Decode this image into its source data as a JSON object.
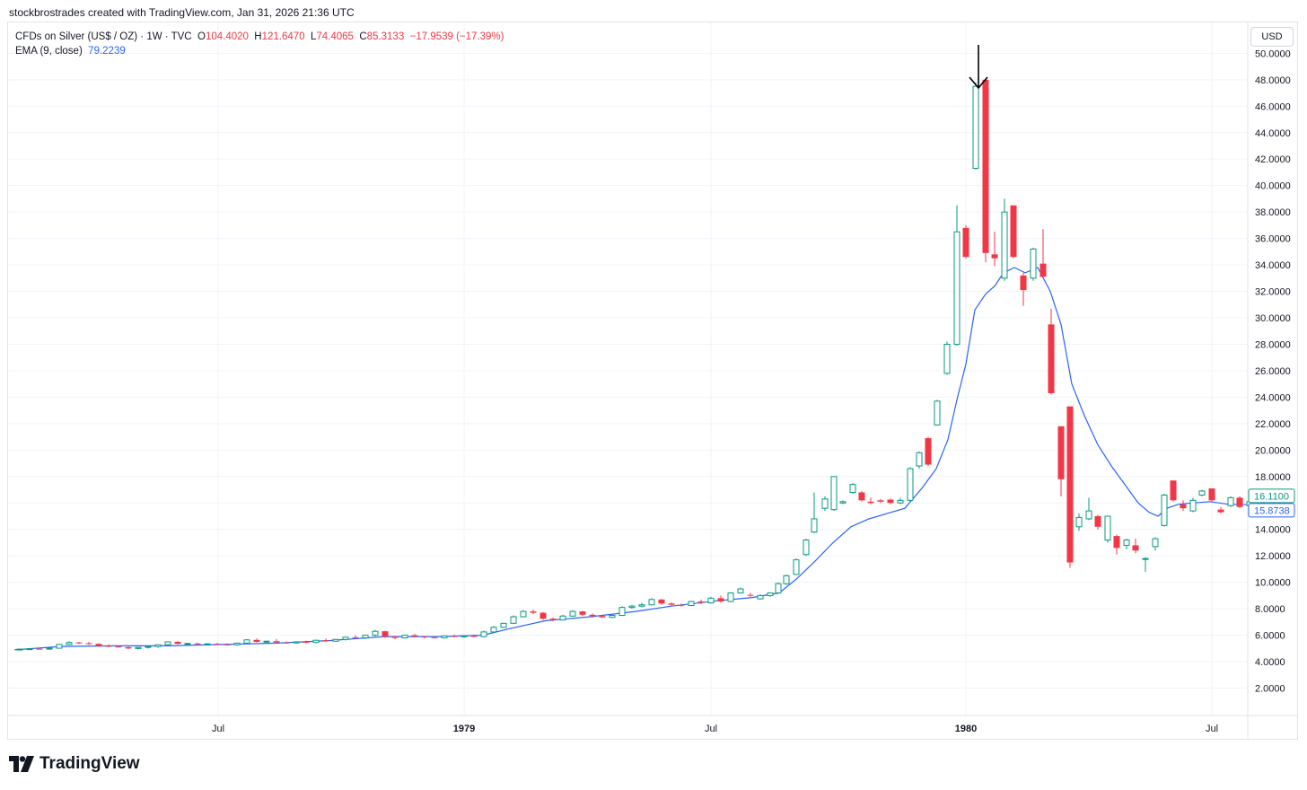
{
  "header": {
    "attribution": "stockbrostrades created with TradingView.com, Jan 31, 2026 21:36 UTC"
  },
  "legend": {
    "symbol": "CFDs on Silver (US$ / OZ) · 1W · TVC",
    "o_label": "O",
    "o_value": "104.4020",
    "h_label": "H",
    "h_value": "121.6470",
    "l_label": "L",
    "l_value": "74.4065",
    "c_label": "C",
    "c_value": "85.3133",
    "change": "−17.9539 (−17.39%)",
    "ema_label": "EMA (9, close)",
    "ema_value": "79.2239"
  },
  "currency": "USD",
  "footer": {
    "logo_text": "TradingView"
  },
  "colors": {
    "up": "#089981",
    "down": "#f23645",
    "ema": "#2962ff",
    "grid": "#f0f3fa"
  },
  "chart_data": {
    "type": "candlestick",
    "y_axis": {
      "ticks": [
        "2.0000",
        "4.0000",
        "6.0000",
        "8.0000",
        "10.0000",
        "12.0000",
        "14.0000",
        "16.0000",
        "18.0000",
        "20.0000",
        "22.0000",
        "24.0000",
        "26.0000",
        "28.0000",
        "30.0000",
        "32.0000",
        "34.0000",
        "36.0000",
        "38.0000",
        "40.0000",
        "42.0000",
        "44.0000",
        "46.0000",
        "48.0000",
        "50.0000"
      ],
      "range": [
        0,
        52.4
      ]
    },
    "x_axis": {
      "ticks": [
        {
          "label": "Jul",
          "x": 235
        },
        {
          "label": "1979",
          "x": 509
        },
        {
          "label": "Jul",
          "x": 784
        },
        {
          "label": "1980",
          "x": 1068
        },
        {
          "label": "Jul",
          "x": 1342
        }
      ],
      "range": [
        0,
        1386
      ]
    },
    "last_price_label": "16.1100",
    "ema_last_label": "15.8738",
    "annotation": "arrow pointing at the peak candle (~48.00)",
    "candles": [
      [
        14,
        4.92,
        4.96,
        4.88,
        4.95
      ],
      [
        25,
        4.95,
        5.0,
        4.9,
        4.98
      ],
      [
        36,
        4.98,
        5.05,
        4.92,
        4.95
      ],
      [
        47,
        4.95,
        5.05,
        4.9,
        5.02
      ],
      [
        58,
        5.02,
        5.35,
        5.0,
        5.3
      ],
      [
        69,
        5.3,
        5.55,
        5.25,
        5.45
      ],
      [
        80,
        5.45,
        5.5,
        5.35,
        5.4
      ],
      [
        91,
        5.4,
        5.48,
        5.28,
        5.35
      ],
      [
        102,
        5.35,
        5.4,
        5.15,
        5.2
      ],
      [
        113,
        5.2,
        5.3,
        5.1,
        5.15
      ],
      [
        124,
        5.15,
        5.22,
        5.05,
        5.1
      ],
      [
        135,
        5.1,
        5.15,
        4.95,
        5.0
      ],
      [
        146,
        5.0,
        5.12,
        4.92,
        5.08
      ],
      [
        157,
        5.08,
        5.2,
        5.0,
        5.15
      ],
      [
        168,
        5.15,
        5.32,
        5.05,
        5.28
      ],
      [
        179,
        5.28,
        5.55,
        5.2,
        5.5
      ],
      [
        190,
        5.5,
        5.55,
        5.3,
        5.35
      ],
      [
        201,
        5.35,
        5.42,
        5.25,
        5.38
      ],
      [
        212,
        5.38,
        5.45,
        5.3,
        5.32
      ],
      [
        223,
        5.32,
        5.4,
        5.25,
        5.35
      ],
      [
        234,
        5.35,
        5.42,
        5.28,
        5.3
      ],
      [
        245,
        5.3,
        5.4,
        5.22,
        5.28
      ],
      [
        256,
        5.28,
        5.45,
        5.2,
        5.4
      ],
      [
        267,
        5.4,
        5.7,
        5.35,
        5.65
      ],
      [
        278,
        5.65,
        5.75,
        5.45,
        5.5
      ],
      [
        289,
        5.5,
        5.6,
        5.4,
        5.55
      ],
      [
        300,
        5.55,
        5.7,
        5.4,
        5.45
      ],
      [
        311,
        5.45,
        5.52,
        5.35,
        5.42
      ],
      [
        322,
        5.42,
        5.55,
        5.35,
        5.5
      ],
      [
        333,
        5.5,
        5.6,
        5.4,
        5.45
      ],
      [
        344,
        5.45,
        5.65,
        5.4,
        5.62
      ],
      [
        355,
        5.62,
        5.75,
        5.5,
        5.55
      ],
      [
        366,
        5.55,
        5.72,
        5.5,
        5.68
      ],
      [
        377,
        5.68,
        5.9,
        5.6,
        5.85
      ],
      [
        388,
        5.85,
        6.0,
        5.75,
        5.8
      ],
      [
        399,
        5.8,
        6.05,
        5.7,
        6.0
      ],
      [
        410,
        6.0,
        6.4,
        5.9,
        6.3
      ],
      [
        421,
        6.3,
        6.35,
        5.8,
        5.9
      ],
      [
        432,
        5.9,
        5.95,
        5.7,
        5.8
      ],
      [
        443,
        5.8,
        6.05,
        5.75,
        6.0
      ],
      [
        454,
        6.0,
        6.1,
        5.85,
        5.9
      ],
      [
        465,
        5.9,
        5.95,
        5.75,
        5.85
      ],
      [
        476,
        5.85,
        5.92,
        5.75,
        5.8
      ],
      [
        487,
        5.8,
        6.0,
        5.75,
        5.95
      ],
      [
        498,
        5.95,
        6.05,
        5.85,
        5.9
      ],
      [
        509,
        5.9,
        6.0,
        5.8,
        5.95
      ],
      [
        520,
        5.95,
        6.05,
        5.85,
        5.9
      ],
      [
        531,
        5.9,
        6.35,
        5.85,
        6.25
      ],
      [
        542,
        6.25,
        6.7,
        6.2,
        6.6
      ],
      [
        553,
        6.6,
        6.95,
        6.55,
        6.9
      ],
      [
        564,
        6.9,
        7.5,
        6.85,
        7.4
      ],
      [
        575,
        7.4,
        7.9,
        7.35,
        7.8
      ],
      [
        586,
        7.8,
        7.95,
        7.6,
        7.7
      ],
      [
        597,
        7.7,
        7.75,
        7.15,
        7.25
      ],
      [
        608,
        7.25,
        7.35,
        7.05,
        7.15
      ],
      [
        619,
        7.15,
        7.55,
        7.1,
        7.45
      ],
      [
        630,
        7.45,
        7.9,
        7.4,
        7.8
      ],
      [
        641,
        7.8,
        7.85,
        7.45,
        7.55
      ],
      [
        652,
        7.55,
        7.65,
        7.35,
        7.45
      ],
      [
        663,
        7.45,
        7.55,
        7.3,
        7.35
      ],
      [
        674,
        7.35,
        7.55,
        7.3,
        7.5
      ],
      [
        685,
        7.5,
        8.2,
        7.45,
        8.1
      ],
      [
        696,
        8.1,
        8.3,
        8.0,
        8.2
      ],
      [
        707,
        8.2,
        8.45,
        8.1,
        8.3
      ],
      [
        718,
        8.3,
        8.8,
        8.25,
        8.7
      ],
      [
        729,
        8.7,
        8.75,
        8.3,
        8.4
      ],
      [
        740,
        8.4,
        8.5,
        8.2,
        8.3
      ],
      [
        751,
        8.3,
        8.4,
        8.15,
        8.25
      ],
      [
        762,
        8.25,
        8.6,
        8.2,
        8.55
      ],
      [
        773,
        8.55,
        8.7,
        8.35,
        8.45
      ],
      [
        784,
        8.45,
        8.9,
        8.4,
        8.8
      ],
      [
        795,
        8.8,
        9.0,
        8.45,
        8.55
      ],
      [
        806,
        8.55,
        9.25,
        8.5,
        9.2
      ],
      [
        817,
        9.2,
        9.6,
        9.15,
        9.5
      ],
      [
        828,
        9.05,
        9.2,
        8.9,
        9.0
      ],
      [
        839,
        8.75,
        9.1,
        8.7,
        9.0
      ],
      [
        850,
        9.0,
        9.25,
        8.9,
        9.2
      ],
      [
        859,
        9.2,
        10.0,
        9.15,
        9.9
      ],
      [
        868,
        9.9,
        10.6,
        9.8,
        10.5
      ],
      [
        879,
        10.6,
        11.8,
        10.55,
        11.7
      ],
      [
        890,
        12.1,
        13.3,
        12.0,
        13.2
      ],
      [
        899,
        13.8,
        16.8,
        13.7,
        14.8
      ],
      [
        911,
        15.6,
        16.5,
        15.4,
        16.3
      ],
      [
        921,
        15.5,
        18.0,
        15.4,
        18.0
      ],
      [
        931,
        16.0,
        16.2,
        15.9,
        16.1
      ],
      [
        942,
        16.8,
        17.5,
        16.7,
        17.4
      ],
      [
        952,
        16.8,
        16.9,
        16.1,
        16.2
      ],
      [
        962,
        16.1,
        16.4,
        15.9,
        16.0
      ],
      [
        973,
        16.2,
        16.3,
        16.0,
        16.1
      ],
      [
        984,
        16.25,
        16.35,
        15.9,
        16.0
      ],
      [
        995,
        16.0,
        16.4,
        15.9,
        16.2
      ],
      [
        1006,
        16.2,
        18.7,
        16.1,
        18.6
      ],
      [
        1016,
        18.8,
        19.9,
        18.6,
        19.8
      ],
      [
        1026,
        20.9,
        21.0,
        18.8,
        18.9
      ],
      [
        1036,
        21.9,
        23.8,
        21.85,
        23.7
      ],
      [
        1047,
        25.8,
        28.2,
        25.7,
        28.0
      ],
      [
        1058,
        28.0,
        38.5,
        27.9,
        36.5
      ],
      [
        1068,
        36.8,
        37.0,
        34.5,
        34.6
      ],
      [
        1079,
        41.3,
        47.8,
        41.2,
        47.5
      ],
      [
        1090,
        48.0,
        48.1,
        34.2,
        34.9
      ],
      [
        1100,
        34.8,
        36.5,
        33.9,
        34.5
      ],
      [
        1111,
        33.0,
        39.0,
        32.8,
        38.0
      ],
      [
        1121,
        38.5,
        38.5,
        34.5,
        34.6
      ],
      [
        1132,
        33.2,
        33.4,
        30.9,
        32.1
      ],
      [
        1143,
        33.0,
        35.3,
        32.8,
        35.2
      ],
      [
        1154,
        34.1,
        36.7,
        33.0,
        33.1
      ],
      [
        1163,
        29.5,
        30.7,
        24.2,
        24.3
      ],
      [
        1174,
        21.8,
        21.8,
        16.5,
        17.8
      ],
      [
        1184,
        23.3,
        23.3,
        11.1,
        11.5
      ],
      [
        1194,
        14.2,
        15.2,
        13.9,
        14.9
      ],
      [
        1205,
        14.8,
        16.4,
        14.7,
        15.4
      ],
      [
        1215,
        15.0,
        15.1,
        14.0,
        14.2
      ],
      [
        1226,
        13.2,
        15.0,
        13.0,
        15.0
      ],
      [
        1236,
        13.5,
        13.6,
        12.1,
        12.6
      ],
      [
        1247,
        12.8,
        13.3,
        12.5,
        13.2
      ],
      [
        1257,
        12.8,
        13.3,
        12.2,
        12.4
      ],
      [
        1268,
        11.8,
        11.9,
        10.8,
        11.8
      ],
      [
        1279,
        12.7,
        13.4,
        12.4,
        13.3
      ],
      [
        1289,
        14.3,
        16.7,
        14.2,
        16.6
      ],
      [
        1299,
        17.7,
        17.7,
        16.1,
        16.2
      ],
      [
        1310,
        15.9,
        16.2,
        15.4,
        15.6
      ],
      [
        1321,
        15.4,
        16.4,
        15.3,
        16.2
      ],
      [
        1331,
        16.6,
        17.0,
        16.5,
        16.9
      ],
      [
        1342,
        17.1,
        17.1,
        16.1,
        16.2
      ],
      [
        1352,
        15.5,
        15.7,
        15.2,
        15.3
      ],
      [
        1363,
        15.8,
        16.5,
        15.7,
        16.4
      ],
      [
        1373,
        16.4,
        16.5,
        15.6,
        15.7
      ],
      [
        1384,
        15.8,
        16.2,
        15.7,
        16.1
      ]
    ],
    "ema": [
      [
        8,
        4.9
      ],
      [
        60,
        5.15
      ],
      [
        120,
        5.2
      ],
      [
        180,
        5.2
      ],
      [
        240,
        5.3
      ],
      [
        300,
        5.4
      ],
      [
        360,
        5.6
      ],
      [
        420,
        5.9
      ],
      [
        480,
        5.9
      ],
      [
        530,
        6.0
      ],
      [
        560,
        6.5
      ],
      [
        600,
        7.1
      ],
      [
        650,
        7.4
      ],
      [
        700,
        7.8
      ],
      [
        740,
        8.2
      ],
      [
        790,
        8.6
      ],
      [
        830,
        8.85
      ],
      [
        860,
        9.2
      ],
      [
        880,
        10.3
      ],
      [
        900,
        11.6
      ],
      [
        920,
        13.0
      ],
      [
        940,
        14.2
      ],
      [
        960,
        14.8
      ],
      [
        980,
        15.2
      ],
      [
        1000,
        15.6
      ],
      [
        1010,
        16.4
      ],
      [
        1020,
        17.2
      ],
      [
        1035,
        18.6
      ],
      [
        1048,
        20.8
      ],
      [
        1058,
        23.8
      ],
      [
        1068,
        26.5
      ],
      [
        1078,
        30.6
      ],
      [
        1090,
        31.8
      ],
      [
        1100,
        32.4
      ],
      [
        1110,
        33.4
      ],
      [
        1122,
        33.8
      ],
      [
        1134,
        33.4
      ],
      [
        1148,
        33.8
      ],
      [
        1162,
        32.0
      ],
      [
        1174,
        29.5
      ],
      [
        1186,
        25.0
      ],
      [
        1200,
        22.6
      ],
      [
        1215,
        20.4
      ],
      [
        1230,
        18.8
      ],
      [
        1245,
        17.4
      ],
      [
        1260,
        16.0
      ],
      [
        1272,
        15.3
      ],
      [
        1282,
        15.0
      ],
      [
        1292,
        15.6
      ],
      [
        1305,
        15.9
      ],
      [
        1320,
        16.0
      ],
      [
        1340,
        16.1
      ],
      [
        1360,
        15.9
      ],
      [
        1386,
        15.87
      ]
    ]
  }
}
